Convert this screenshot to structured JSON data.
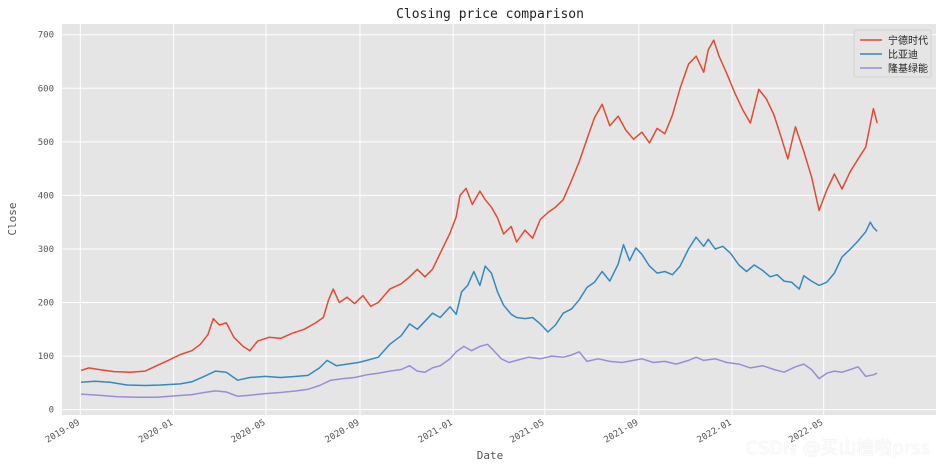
{
  "chart_data": {
    "type": "line",
    "title": "Closing price comparison",
    "xlabel": "Date",
    "ylabel": "Close",
    "ylim": [
      -10,
      720
    ],
    "yticks": [
      0,
      100,
      200,
      300,
      400,
      500,
      600,
      700
    ],
    "xlim": [
      "2019-08-08",
      "2022-09-25"
    ],
    "xticks": [
      "2019-09",
      "2020-01",
      "2020-05",
      "2020-09",
      "2021-01",
      "2021-05",
      "2021-09",
      "2022-01",
      "2022-05"
    ],
    "grid": true,
    "legend_position": "top-right",
    "colors": {
      "plot_bg": "#e5e5e5",
      "grid": "#ffffff",
      "text": "#555555"
    },
    "series": [
      {
        "name": "宁德时代",
        "color": "#e24a33",
        "points": [
          [
            "2019-09-02",
            73
          ],
          [
            "2019-09-12",
            78
          ],
          [
            "2019-09-25",
            75
          ],
          [
            "2019-10-15",
            71
          ],
          [
            "2019-11-05",
            70
          ],
          [
            "2019-11-25",
            72
          ],
          [
            "2019-12-10",
            82
          ],
          [
            "2019-12-25",
            92
          ],
          [
            "2020-01-10",
            103
          ],
          [
            "2020-01-25",
            110
          ],
          [
            "2020-02-05",
            122
          ],
          [
            "2020-02-15",
            140
          ],
          [
            "2020-02-22",
            170
          ],
          [
            "2020-03-01",
            158
          ],
          [
            "2020-03-10",
            162
          ],
          [
            "2020-03-20",
            135
          ],
          [
            "2020-04-01",
            118
          ],
          [
            "2020-04-10",
            110
          ],
          [
            "2020-04-20",
            128
          ],
          [
            "2020-05-05",
            135
          ],
          [
            "2020-05-20",
            133
          ],
          [
            "2020-06-05",
            143
          ],
          [
            "2020-06-20",
            150
          ],
          [
            "2020-07-05",
            162
          ],
          [
            "2020-07-15",
            172
          ],
          [
            "2020-07-22",
            205
          ],
          [
            "2020-07-28",
            225
          ],
          [
            "2020-08-05",
            200
          ],
          [
            "2020-08-15",
            210
          ],
          [
            "2020-08-25",
            198
          ],
          [
            "2020-09-05",
            213
          ],
          [
            "2020-09-15",
            193
          ],
          [
            "2020-09-25",
            200
          ],
          [
            "2020-10-10",
            225
          ],
          [
            "2020-10-25",
            235
          ],
          [
            "2020-11-05",
            248
          ],
          [
            "2020-11-15",
            262
          ],
          [
            "2020-11-25",
            248
          ],
          [
            "2020-12-05",
            262
          ],
          [
            "2020-12-15",
            292
          ],
          [
            "2020-12-28",
            330
          ],
          [
            "2021-01-05",
            360
          ],
          [
            "2021-01-10",
            400
          ],
          [
            "2021-01-18",
            413
          ],
          [
            "2021-01-26",
            383
          ],
          [
            "2021-02-05",
            408
          ],
          [
            "2021-02-12",
            392
          ],
          [
            "2021-02-20",
            378
          ],
          [
            "2021-02-28",
            358
          ],
          [
            "2021-03-08",
            328
          ],
          [
            "2021-03-18",
            342
          ],
          [
            "2021-03-25",
            313
          ],
          [
            "2021-04-05",
            335
          ],
          [
            "2021-04-15",
            320
          ],
          [
            "2021-04-25",
            355
          ],
          [
            "2021-05-05",
            368
          ],
          [
            "2021-05-15",
            378
          ],
          [
            "2021-05-25",
            392
          ],
          [
            "2021-06-05",
            428
          ],
          [
            "2021-06-15",
            463
          ],
          [
            "2021-06-25",
            505
          ],
          [
            "2021-07-05",
            545
          ],
          [
            "2021-07-15",
            570
          ],
          [
            "2021-07-25",
            530
          ],
          [
            "2021-08-05",
            548
          ],
          [
            "2021-08-15",
            522
          ],
          [
            "2021-08-25",
            505
          ],
          [
            "2021-09-05",
            518
          ],
          [
            "2021-09-15",
            498
          ],
          [
            "2021-09-25",
            525
          ],
          [
            "2021-10-05",
            515
          ],
          [
            "2021-10-15",
            550
          ],
          [
            "2021-10-25",
            600
          ],
          [
            "2021-11-05",
            645
          ],
          [
            "2021-11-15",
            660
          ],
          [
            "2021-11-25",
            630
          ],
          [
            "2021-12-01",
            672
          ],
          [
            "2021-12-08",
            690
          ],
          [
            "2021-12-15",
            660
          ],
          [
            "2021-12-25",
            628
          ],
          [
            "2022-01-05",
            590
          ],
          [
            "2022-01-15",
            560
          ],
          [
            "2022-01-25",
            535
          ],
          [
            "2022-02-05",
            598
          ],
          [
            "2022-02-15",
            580
          ],
          [
            "2022-02-25",
            550
          ],
          [
            "2022-03-05",
            515
          ],
          [
            "2022-03-15",
            468
          ],
          [
            "2022-03-25",
            528
          ],
          [
            "2022-04-05",
            482
          ],
          [
            "2022-04-15",
            435
          ],
          [
            "2022-04-25",
            372
          ],
          [
            "2022-05-05",
            410
          ],
          [
            "2022-05-15",
            440
          ],
          [
            "2022-05-25",
            412
          ],
          [
            "2022-06-05",
            445
          ],
          [
            "2022-06-15",
            468
          ],
          [
            "2022-06-25",
            490
          ],
          [
            "2022-07-05",
            562
          ],
          [
            "2022-07-10",
            535
          ]
        ]
      },
      {
        "name": "比亚迪",
        "color": "#348abd",
        "points": [
          [
            "2019-09-02",
            51
          ],
          [
            "2019-09-20",
            53
          ],
          [
            "2019-10-10",
            51
          ],
          [
            "2019-11-01",
            46
          ],
          [
            "2019-11-25",
            45
          ],
          [
            "2019-12-15",
            46
          ],
          [
            "2020-01-10",
            48
          ],
          [
            "2020-01-25",
            52
          ],
          [
            "2020-02-10",
            62
          ],
          [
            "2020-02-25",
            72
          ],
          [
            "2020-03-10",
            70
          ],
          [
            "2020-03-25",
            55
          ],
          [
            "2020-04-10",
            60
          ],
          [
            "2020-04-30",
            62
          ],
          [
            "2020-05-20",
            60
          ],
          [
            "2020-06-10",
            62
          ],
          [
            "2020-06-25",
            64
          ],
          [
            "2020-07-10",
            78
          ],
          [
            "2020-07-20",
            92
          ],
          [
            "2020-08-01",
            82
          ],
          [
            "2020-08-15",
            85
          ],
          [
            "2020-08-30",
            88
          ],
          [
            "2020-09-10",
            92
          ],
          [
            "2020-09-25",
            98
          ],
          [
            "2020-10-10",
            122
          ],
          [
            "2020-10-25",
            138
          ],
          [
            "2020-11-05",
            160
          ],
          [
            "2020-11-15",
            150
          ],
          [
            "2020-11-25",
            165
          ],
          [
            "2020-12-05",
            180
          ],
          [
            "2020-12-15",
            172
          ],
          [
            "2020-12-28",
            192
          ],
          [
            "2021-01-05",
            178
          ],
          [
            "2021-01-12",
            220
          ],
          [
            "2021-01-20",
            232
          ],
          [
            "2021-01-28",
            258
          ],
          [
            "2021-02-05",
            232
          ],
          [
            "2021-02-12",
            268
          ],
          [
            "2021-02-20",
            255
          ],
          [
            "2021-02-28",
            220
          ],
          [
            "2021-03-08",
            195
          ],
          [
            "2021-03-18",
            178
          ],
          [
            "2021-03-25",
            172
          ],
          [
            "2021-04-05",
            170
          ],
          [
            "2021-04-15",
            172
          ],
          [
            "2021-04-25",
            160
          ],
          [
            "2021-05-05",
            145
          ],
          [
            "2021-05-15",
            158
          ],
          [
            "2021-05-25",
            180
          ],
          [
            "2021-06-05",
            188
          ],
          [
            "2021-06-15",
            205
          ],
          [
            "2021-06-25",
            228
          ],
          [
            "2021-07-05",
            238
          ],
          [
            "2021-07-15",
            258
          ],
          [
            "2021-07-25",
            240
          ],
          [
            "2021-08-05",
            272
          ],
          [
            "2021-08-12",
            308
          ],
          [
            "2021-08-20",
            278
          ],
          [
            "2021-08-28",
            302
          ],
          [
            "2021-09-05",
            290
          ],
          [
            "2021-09-15",
            268
          ],
          [
            "2021-09-25",
            255
          ],
          [
            "2021-10-05",
            258
          ],
          [
            "2021-10-15",
            252
          ],
          [
            "2021-10-25",
            268
          ],
          [
            "2021-11-05",
            300
          ],
          [
            "2021-11-15",
            322
          ],
          [
            "2021-11-25",
            305
          ],
          [
            "2021-12-01",
            318
          ],
          [
            "2021-12-10",
            300
          ],
          [
            "2021-12-20",
            305
          ],
          [
            "2021-12-30",
            292
          ],
          [
            "2022-01-10",
            270
          ],
          [
            "2022-01-20",
            258
          ],
          [
            "2022-01-30",
            270
          ],
          [
            "2022-02-10",
            260
          ],
          [
            "2022-02-20",
            248
          ],
          [
            "2022-03-01",
            252
          ],
          [
            "2022-03-10",
            240
          ],
          [
            "2022-03-20",
            238
          ],
          [
            "2022-03-30",
            225
          ],
          [
            "2022-04-05",
            250
          ],
          [
            "2022-04-15",
            240
          ],
          [
            "2022-04-25",
            232
          ],
          [
            "2022-05-05",
            238
          ],
          [
            "2022-05-15",
            255
          ],
          [
            "2022-05-25",
            285
          ],
          [
            "2022-06-05",
            300
          ],
          [
            "2022-06-15",
            315
          ],
          [
            "2022-06-25",
            332
          ],
          [
            "2022-07-01",
            350
          ],
          [
            "2022-07-05",
            340
          ],
          [
            "2022-07-10",
            333
          ]
        ]
      },
      {
        "name": "隆基绿能",
        "color": "#988ed5",
        "points": [
          [
            "2019-09-02",
            29
          ],
          [
            "2019-09-25",
            27
          ],
          [
            "2019-10-20",
            24
          ],
          [
            "2019-11-15",
            23
          ],
          [
            "2019-12-10",
            23
          ],
          [
            "2020-01-05",
            26
          ],
          [
            "2020-01-25",
            28
          ],
          [
            "2020-02-10",
            32
          ],
          [
            "2020-02-25",
            35
          ],
          [
            "2020-03-10",
            33
          ],
          [
            "2020-03-25",
            25
          ],
          [
            "2020-04-10",
            27
          ],
          [
            "2020-04-30",
            30
          ],
          [
            "2020-05-20",
            32
          ],
          [
            "2020-06-10",
            35
          ],
          [
            "2020-06-25",
            38
          ],
          [
            "2020-07-10",
            45
          ],
          [
            "2020-07-25",
            55
          ],
          [
            "2020-08-10",
            58
          ],
          [
            "2020-08-25",
            60
          ],
          [
            "2020-09-10",
            65
          ],
          [
            "2020-09-25",
            68
          ],
          [
            "2020-10-10",
            72
          ],
          [
            "2020-10-25",
            75
          ],
          [
            "2020-11-05",
            82
          ],
          [
            "2020-11-15",
            72
          ],
          [
            "2020-11-25",
            70
          ],
          [
            "2020-12-05",
            78
          ],
          [
            "2020-12-15",
            82
          ],
          [
            "2020-12-28",
            95
          ],
          [
            "2021-01-05",
            108
          ],
          [
            "2021-01-15",
            118
          ],
          [
            "2021-01-25",
            110
          ],
          [
            "2021-02-05",
            118
          ],
          [
            "2021-02-15",
            122
          ],
          [
            "2021-02-22",
            112
          ],
          [
            "2021-03-05",
            95
          ],
          [
            "2021-03-15",
            88
          ],
          [
            "2021-03-25",
            92
          ],
          [
            "2021-04-10",
            98
          ],
          [
            "2021-04-25",
            95
          ],
          [
            "2021-05-10",
            100
          ],
          [
            "2021-05-25",
            98
          ],
          [
            "2021-06-05",
            102
          ],
          [
            "2021-06-15",
            108
          ],
          [
            "2021-06-25",
            90
          ],
          [
            "2021-07-10",
            95
          ],
          [
            "2021-07-25",
            90
          ],
          [
            "2021-08-10",
            88
          ],
          [
            "2021-08-25",
            92
          ],
          [
            "2021-09-05",
            95
          ],
          [
            "2021-09-20",
            88
          ],
          [
            "2021-10-05",
            90
          ],
          [
            "2021-10-20",
            85
          ],
          [
            "2021-11-05",
            92
          ],
          [
            "2021-11-15",
            98
          ],
          [
            "2021-11-25",
            92
          ],
          [
            "2021-12-10",
            95
          ],
          [
            "2021-12-25",
            88
          ],
          [
            "2022-01-10",
            85
          ],
          [
            "2022-01-25",
            78
          ],
          [
            "2022-02-10",
            82
          ],
          [
            "2022-02-25",
            75
          ],
          [
            "2022-03-10",
            70
          ],
          [
            "2022-03-25",
            80
          ],
          [
            "2022-04-05",
            85
          ],
          [
            "2022-04-15",
            75
          ],
          [
            "2022-04-25",
            58
          ],
          [
            "2022-05-05",
            68
          ],
          [
            "2022-05-15",
            72
          ],
          [
            "2022-05-25",
            70
          ],
          [
            "2022-06-05",
            75
          ],
          [
            "2022-06-15",
            80
          ],
          [
            "2022-06-25",
            62
          ],
          [
            "2022-07-05",
            65
          ],
          [
            "2022-07-10",
            68
          ]
        ]
      }
    ]
  },
  "watermark": "CSDN @买山楂啦prss"
}
